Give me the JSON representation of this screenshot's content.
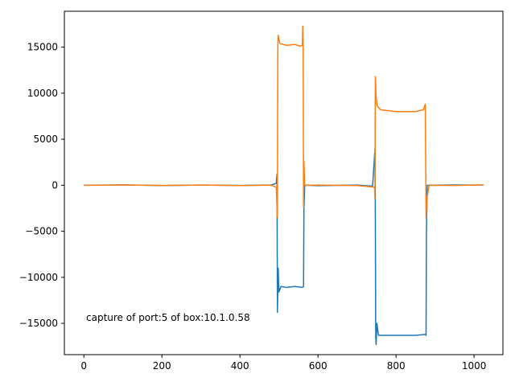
{
  "chart_data": {
    "type": "line",
    "title": "",
    "xlabel": "",
    "ylabel": "",
    "xlim": [
      -50,
      1074
    ],
    "ylim": [
      -18400,
      18900
    ],
    "xticks": [
      0,
      200,
      400,
      600,
      800,
      1000
    ],
    "yticks": [
      -15000,
      -10000,
      -5000,
      0,
      5000,
      10000,
      15000
    ],
    "grid": false,
    "annotation": "capture of port:5 of box:10.1.0.58",
    "series": [
      {
        "color": "#1f77b4",
        "points": [
          [
            0,
            0
          ],
          [
            100,
            40
          ],
          [
            200,
            -30
          ],
          [
            300,
            20
          ],
          [
            400,
            -20
          ],
          [
            480,
            30
          ],
          [
            493,
            200
          ],
          [
            495,
            1200
          ],
          [
            496,
            -13800
          ],
          [
            498,
            -9000
          ],
          [
            500,
            -11600
          ],
          [
            505,
            -11000
          ],
          [
            520,
            -11100
          ],
          [
            540,
            -11000
          ],
          [
            560,
            -11100
          ],
          [
            563,
            -11000
          ],
          [
            564,
            -2500
          ],
          [
            566,
            0
          ],
          [
            600,
            -40
          ],
          [
            700,
            20
          ],
          [
            740,
            -100
          ],
          [
            746,
            3900
          ],
          [
            747,
            -3000
          ],
          [
            748,
            -16500
          ],
          [
            749,
            -17300
          ],
          [
            751,
            -15000
          ],
          [
            755,
            -16300
          ],
          [
            800,
            -16300
          ],
          [
            850,
            -16300
          ],
          [
            875,
            -16200
          ],
          [
            877,
            -16300
          ],
          [
            878,
            -4800
          ],
          [
            880,
            0
          ],
          [
            950,
            30
          ],
          [
            1024,
            20
          ]
        ]
      },
      {
        "color": "#ff7f0e",
        "points": [
          [
            0,
            0
          ],
          [
            100,
            30
          ],
          [
            200,
            -20
          ],
          [
            300,
            20
          ],
          [
            400,
            -30
          ],
          [
            480,
            10
          ],
          [
            493,
            -200
          ],
          [
            496,
            -3500
          ],
          [
            497,
            15000
          ],
          [
            498,
            16300
          ],
          [
            502,
            15400
          ],
          [
            520,
            15200
          ],
          [
            540,
            15300
          ],
          [
            555,
            15100
          ],
          [
            560,
            15200
          ],
          [
            561,
            17300
          ],
          [
            562,
            15000
          ],
          [
            563,
            -2400
          ],
          [
            564,
            2600
          ],
          [
            566,
            0
          ],
          [
            600,
            20
          ],
          [
            700,
            -30
          ],
          [
            745,
            -200
          ],
          [
            746,
            -1500
          ],
          [
            747,
            11800
          ],
          [
            749,
            9500
          ],
          [
            752,
            8600
          ],
          [
            760,
            8200
          ],
          [
            800,
            8000
          ],
          [
            850,
            8000
          ],
          [
            870,
            8200
          ],
          [
            875,
            8800
          ],
          [
            877,
            -3600
          ],
          [
            880,
            -1200
          ],
          [
            885,
            0
          ],
          [
            950,
            -20
          ],
          [
            1024,
            40
          ]
        ]
      }
    ]
  }
}
